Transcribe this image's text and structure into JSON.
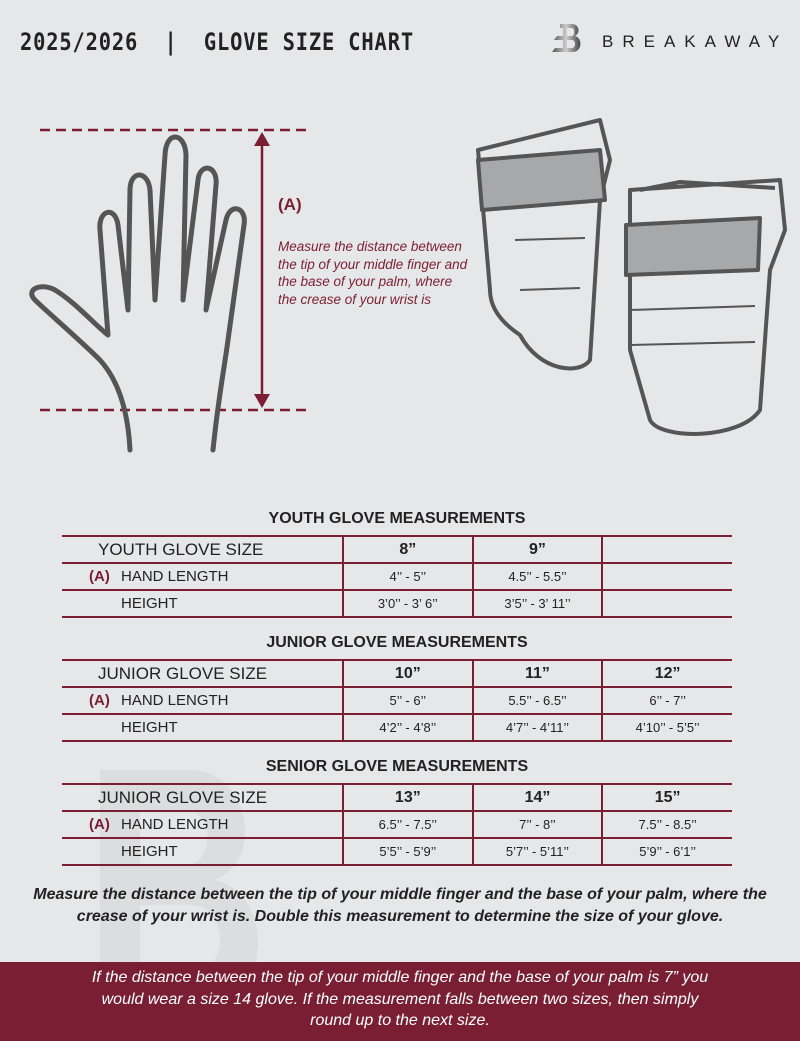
{
  "header": {
    "title": "2025/2026  |  GLOVE SIZE CHART",
    "brand": "BREAKAWAY",
    "logo_letter": "B"
  },
  "colors": {
    "accent": "#7a1f33",
    "background": "#e6e7e9",
    "text": "#222222"
  },
  "diagram": {
    "label": "(A)",
    "instruction": "Measure the distance between the tip of your middle finger and the base of your palm, where the crease of your wrist is"
  },
  "tables": [
    {
      "title": "YOUTH GLOVE MEASUREMENTS",
      "size_label": "YOUTH GLOVE SIZE",
      "sizes": [
        "8”",
        "9”",
        ""
      ],
      "rows": [
        {
          "marker": "(A)",
          "label": "HAND LENGTH",
          "values": [
            "4’’ - 5’’",
            "4.5’’ - 5.5’’",
            ""
          ]
        },
        {
          "marker": "",
          "label": "HEIGHT",
          "values": [
            "3’0’’ - 3’ 6’’",
            "3’5’’ - 3’ 11’’",
            ""
          ]
        }
      ]
    },
    {
      "title": "JUNIOR GLOVE MEASUREMENTS",
      "size_label": "JUNIOR GLOVE SIZE",
      "sizes": [
        "10”",
        "11”",
        "12”"
      ],
      "rows": [
        {
          "marker": "(A)",
          "label": "HAND LENGTH",
          "values": [
            "5’’ - 6’’",
            "5.5’’ - 6.5’’",
            "6’’ - 7’’"
          ]
        },
        {
          "marker": "",
          "label": "HEIGHT",
          "values": [
            "4’2’’ - 4’8’’",
            "4’7’’ - 4’11’’",
            "4’10’’ - 5’5’’"
          ]
        }
      ]
    },
    {
      "title": "SENIOR GLOVE MEASUREMENTS",
      "size_label": "JUNIOR GLOVE SIZE",
      "sizes": [
        "13”",
        "14”",
        "15”"
      ],
      "rows": [
        {
          "marker": "(A)",
          "label": "HAND LENGTH",
          "values": [
            "6.5’’ - 7.5’’",
            "7’’ - 8’’",
            "7.5’’ - 8.5’’"
          ]
        },
        {
          "marker": "",
          "label": "HEIGHT",
          "values": [
            "5’5’’ - 5’9’’",
            "5’7’’ - 5’11’’",
            "5’9’’ - 6’1’’"
          ]
        }
      ]
    }
  ],
  "note": "Measure the distance between the tip of your middle finger and the base of your palm, where the crease of your wrist is. Double this measurement to determine the size of your glove.",
  "footer": "If the distance between the tip of your middle finger and the base of your palm is 7” you would wear a size 14 glove. If the measurement falls between two sizes, then simply round up to the next size."
}
